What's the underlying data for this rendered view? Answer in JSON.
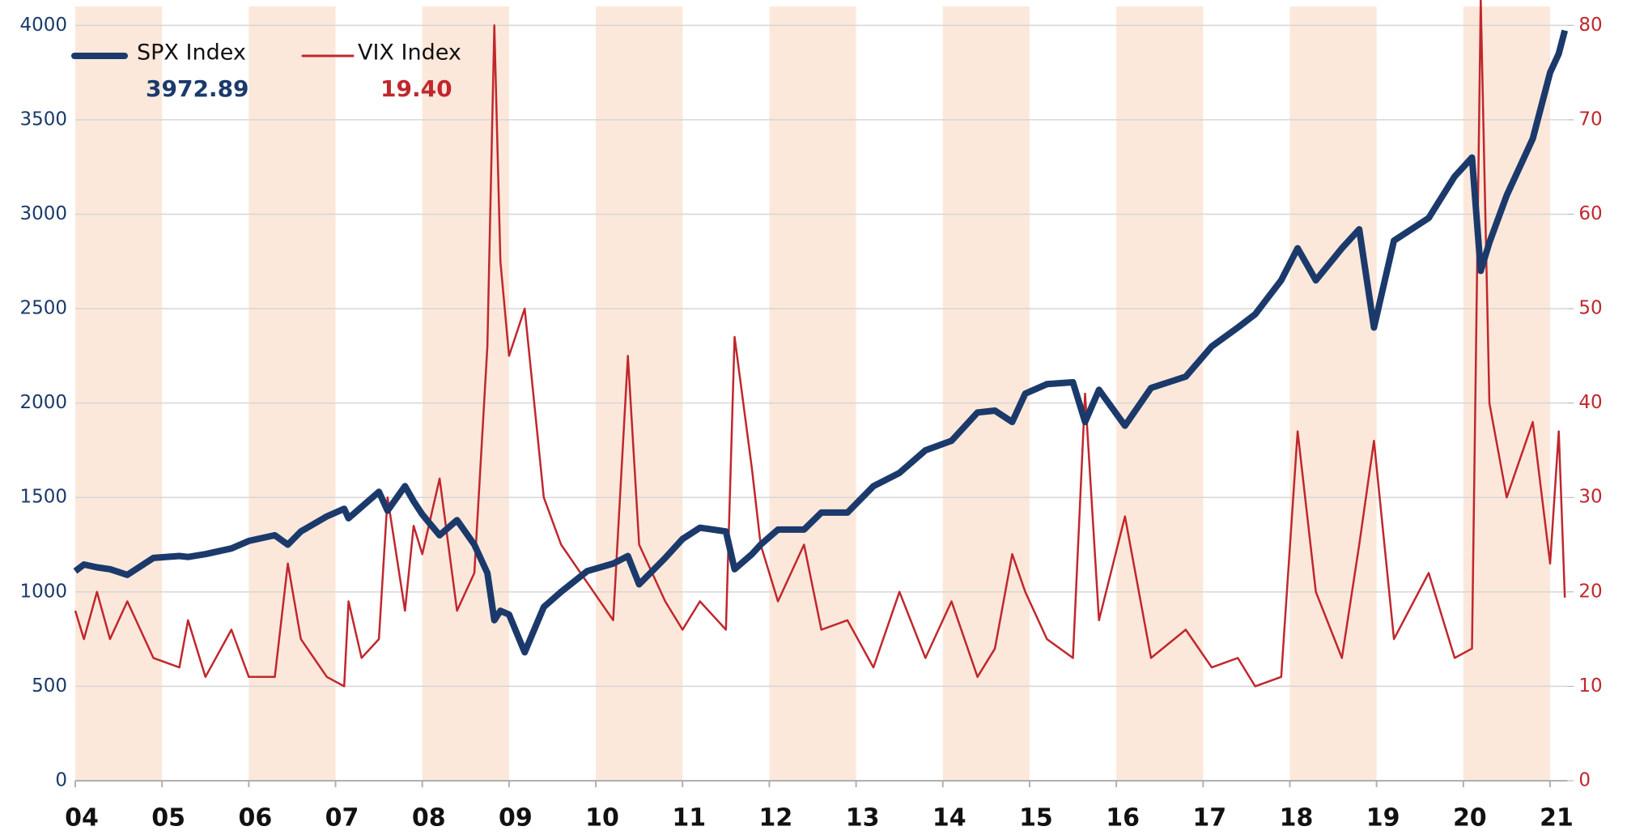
{
  "chart_data": {
    "type": "line",
    "x": [
      2004.0,
      2004.1,
      2004.25,
      2004.4,
      2004.6,
      2004.9,
      2005.2,
      2005.3,
      2005.5,
      2005.8,
      2006.0,
      2006.3,
      2006.45,
      2006.6,
      2006.9,
      2007.1,
      2007.15,
      2007.3,
      2007.5,
      2007.6,
      2007.8,
      2007.9,
      2008.0,
      2008.2,
      2008.4,
      2008.6,
      2008.75,
      2008.83,
      2008.9,
      2009.0,
      2009.18,
      2009.4,
      2009.6,
      2009.9,
      2010.2,
      2010.37,
      2010.5,
      2010.8,
      2011.0,
      2011.2,
      2011.5,
      2011.6,
      2011.8,
      2011.9,
      2012.1,
      2012.4,
      2012.6,
      2012.9,
      2013.2,
      2013.5,
      2013.8,
      2014.1,
      2014.4,
      2014.6,
      2014.8,
      2014.95,
      2015.2,
      2015.5,
      2015.64,
      2015.8,
      2016.1,
      2016.4,
      2016.8,
      2017.1,
      2017.4,
      2017.6,
      2017.9,
      2018.09,
      2018.3,
      2018.6,
      2018.8,
      2018.97,
      2019.2,
      2019.6,
      2019.9,
      2020.1,
      2020.2,
      2020.3,
      2020.5,
      2020.8,
      2021.0,
      2021.1,
      2021.17
    ],
    "series": [
      {
        "name": "SPX Index",
        "color": "#1b3a6b",
        "last_label": "3972.89",
        "values": [
          1110,
          1145,
          1130,
          1120,
          1090,
          1180,
          1190,
          1185,
          1200,
          1230,
          1270,
          1300,
          1250,
          1320,
          1400,
          1440,
          1390,
          1450,
          1530,
          1430,
          1560,
          1480,
          1410,
          1300,
          1380,
          1250,
          1100,
          850,
          900,
          880,
          680,
          920,
          1000,
          1110,
          1150,
          1190,
          1040,
          1180,
          1280,
          1340,
          1320,
          1120,
          1200,
          1250,
          1330,
          1330,
          1420,
          1420,
          1560,
          1630,
          1750,
          1800,
          1950,
          1960,
          1900,
          2050,
          2100,
          2110,
          1900,
          2070,
          1880,
          2080,
          2140,
          2300,
          2400,
          2470,
          2650,
          2820,
          2650,
          2820,
          2920,
          2400,
          2860,
          2980,
          3200,
          3300,
          2700,
          2850,
          3100,
          3400,
          3750,
          3850,
          3972.89
        ]
      },
      {
        "name": "VIX Index",
        "color": "#c0272d",
        "axis": "y2",
        "last_label": "19.40",
        "values": [
          18,
          15,
          20,
          15,
          19,
          13,
          12,
          17,
          11,
          16,
          11,
          11,
          23,
          15,
          11,
          10,
          19,
          13,
          15,
          30,
          18,
          27,
          24,
          32,
          18,
          22,
          46,
          80,
          55,
          45,
          50,
          30,
          25,
          21,
          17,
          45,
          25,
          19,
          16,
          19,
          16,
          47,
          33,
          25,
          19,
          25,
          16,
          17,
          12,
          20,
          13,
          19,
          11,
          14,
          24,
          20,
          15,
          13,
          41,
          17,
          28,
          13,
          16,
          12,
          13,
          10,
          11,
          37,
          20,
          13,
          25,
          36,
          15,
          22,
          13,
          14,
          82.7,
          40,
          30,
          38,
          23,
          37,
          19.4
        ]
      }
    ],
    "xlim": [
      2004,
      2021.2
    ],
    "xticks": [
      {
        "value": 2004,
        "label": "04"
      },
      {
        "value": 2005,
        "label": "05"
      },
      {
        "value": 2006,
        "label": "06"
      },
      {
        "value": 2007,
        "label": "07"
      },
      {
        "value": 2008,
        "label": "08"
      },
      {
        "value": 2009,
        "label": "09"
      },
      {
        "value": 2010,
        "label": "10"
      },
      {
        "value": 2011,
        "label": "11"
      },
      {
        "value": 2012,
        "label": "12"
      },
      {
        "value": 2013,
        "label": "13"
      },
      {
        "value": 2014,
        "label": "14"
      },
      {
        "value": 2015,
        "label": "15"
      },
      {
        "value": 2016,
        "label": "16"
      },
      {
        "value": 2017,
        "label": "17"
      },
      {
        "value": 2018,
        "label": "18"
      },
      {
        "value": 2019,
        "label": "19"
      },
      {
        "value": 2020,
        "label": "20"
      },
      {
        "value": 2021,
        "label": "21"
      }
    ],
    "ylim": [
      0,
      4100
    ],
    "yticks": [
      0,
      500,
      1000,
      1500,
      2000,
      2500,
      3000,
      3500,
      4000
    ],
    "y2lim": [
      0,
      82
    ],
    "y2ticks": [
      0,
      10,
      20,
      30,
      40,
      50,
      60,
      70,
      80
    ],
    "grid": true,
    "shade_alternate_years": true,
    "shade_color": "#fce8da",
    "legend": "top-left"
  }
}
